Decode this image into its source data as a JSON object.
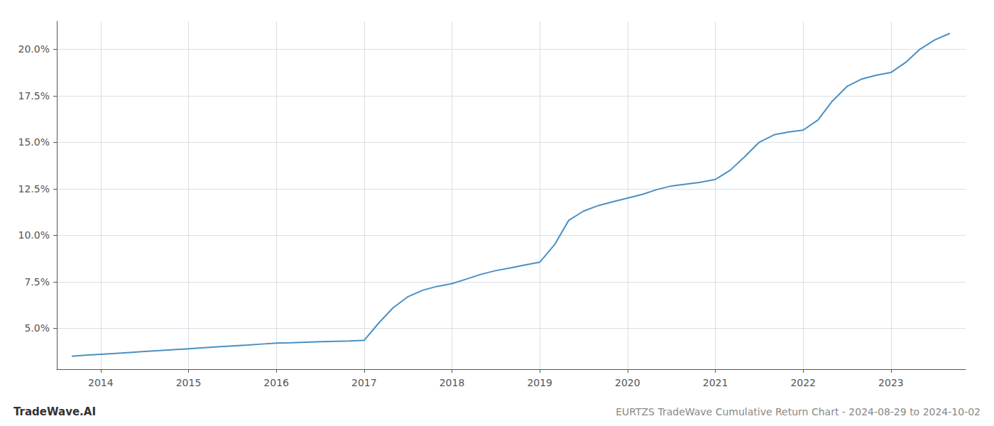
{
  "chart_data": {
    "type": "line",
    "title": "EURTZS TradeWave Cumulative Return Chart - 2024-08-29 to 2024-10-02",
    "annotations": [
      "TradeWave.AI"
    ],
    "x": [
      2013.67,
      2013.83,
      2014.0,
      2014.17,
      2014.33,
      2014.5,
      2014.67,
      2014.83,
      2015.0,
      2015.17,
      2015.33,
      2015.5,
      2015.67,
      2015.83,
      2016.0,
      2016.17,
      2016.33,
      2016.5,
      2016.67,
      2016.83,
      2017.0,
      2017.17,
      2017.33,
      2017.5,
      2017.67,
      2017.83,
      2018.0,
      2018.17,
      2018.33,
      2018.5,
      2018.67,
      2018.83,
      2019.0,
      2019.17,
      2019.33,
      2019.5,
      2019.67,
      2019.83,
      2020.0,
      2020.17,
      2020.33,
      2020.5,
      2020.67,
      2020.83,
      2021.0,
      2021.17,
      2021.33,
      2021.5,
      2021.67,
      2021.83,
      2022.0,
      2022.17,
      2022.33,
      2022.5,
      2022.67,
      2022.83,
      2023.0,
      2023.17,
      2023.33,
      2023.5,
      2023.67
    ],
    "values": [
      3.5,
      3.55,
      3.6,
      3.65,
      3.7,
      3.75,
      3.8,
      3.85,
      3.9,
      3.95,
      4.0,
      4.05,
      4.1,
      4.15,
      4.2,
      4.22,
      4.25,
      4.28,
      4.3,
      4.32,
      4.35,
      5.3,
      6.1,
      6.7,
      7.05,
      7.25,
      7.4,
      7.65,
      7.9,
      8.1,
      8.25,
      8.4,
      8.55,
      9.5,
      10.8,
      11.3,
      11.6,
      11.8,
      12.0,
      12.2,
      12.45,
      12.65,
      12.75,
      12.85,
      13.0,
      13.5,
      14.2,
      15.0,
      15.4,
      15.55,
      15.65,
      16.2,
      17.2,
      18.0,
      18.4,
      18.6,
      18.75,
      19.3,
      20.0,
      20.5,
      20.85
    ],
    "color": "#4a90c4",
    "xlim": [
      2013.5,
      2023.85
    ],
    "ylim": [
      2.8,
      21.5
    ],
    "xticks": [
      2014,
      2015,
      2016,
      2017,
      2018,
      2019,
      2020,
      2021,
      2022,
      2023
    ],
    "yticks": [
      {
        "value": 5.0,
        "label": "5.0%"
      },
      {
        "value": 7.5,
        "label": "7.5%"
      },
      {
        "value": 10.0,
        "label": "10.0%"
      },
      {
        "value": 12.5,
        "label": "12.5%"
      },
      {
        "value": 15.0,
        "label": "15.0%"
      },
      {
        "value": 17.5,
        "label": "17.5%"
      },
      {
        "value": 20.0,
        "label": "20.0%"
      }
    ],
    "grid": true
  }
}
